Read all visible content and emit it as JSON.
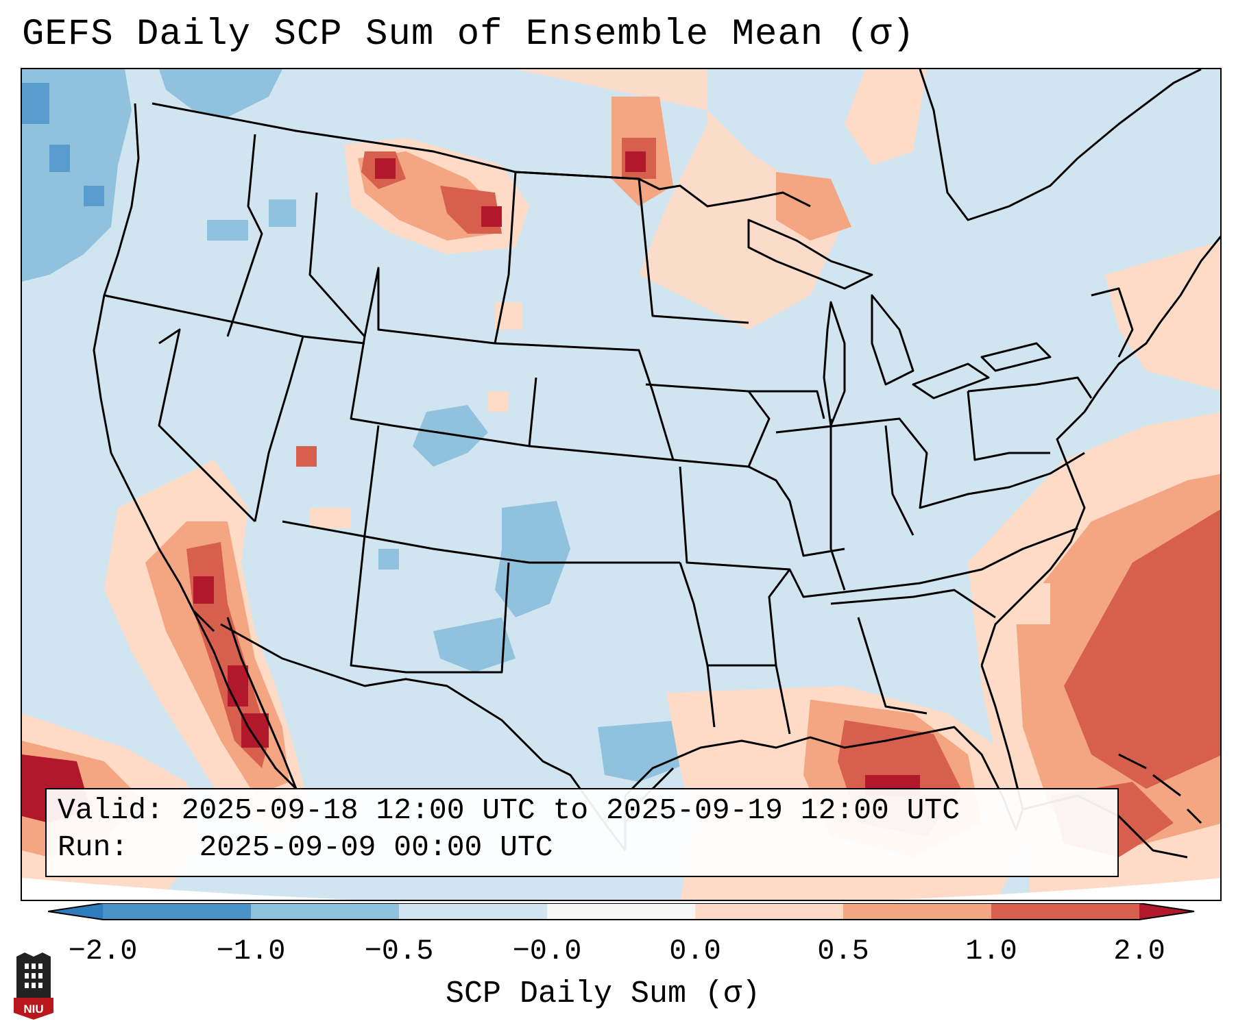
{
  "title": "GEFS Daily SCP Sum of Ensemble Mean (σ)",
  "info": {
    "valid_label": "Valid:",
    "valid_value": "2025-09-18 12:00 UTC to 2025-09-19 12:00 UTC",
    "run_label": "Run:",
    "run_value": "2025-09-09 00:00 UTC"
  },
  "colorbar": {
    "label": "SCP Daily Sum (σ)",
    "ticks": [
      "−2.0",
      "−1.0",
      "−0.5",
      "−0.0",
      "0.0",
      "0.5",
      "1.0",
      "2.0"
    ],
    "bins": [
      {
        "range": "< -2.0",
        "color": "#2f7cbd"
      },
      {
        "range": "-2.0 to -1.0",
        "color": "#4a93c8"
      },
      {
        "range": "-1.0 to -0.5",
        "color": "#90c2de"
      },
      {
        "range": "-0.5 to -0.0",
        "color": "#d1e5f0"
      },
      {
        "range": "-0.0 to 0.0",
        "color": "#f7f7f7"
      },
      {
        "range": "0.0 to 0.5",
        "color": "#fddbc7"
      },
      {
        "range": "0.5 to 1.0",
        "color": "#f4a582"
      },
      {
        "range": "1.0 to 2.0",
        "color": "#d6604d"
      },
      {
        "range": "> 2.0",
        "color": "#b2182b"
      }
    ]
  },
  "logo": {
    "text": "NIU"
  },
  "colors": {
    "neutral_blue": "#d1e5f0",
    "light_blue": "#90c2de",
    "light_red": "#fddbc7",
    "mid_red": "#f4a582",
    "red": "#d6604d",
    "dark_red": "#b2182b",
    "border": "#000000"
  },
  "anomaly_regions": [
    {
      "name": "Northern Montana / Alberta",
      "category": "1.0 to 2.0"
    },
    {
      "name": "Northern Minnesota / Manitoba",
      "category": "1.0 to 2.0"
    },
    {
      "name": "Gulf of Mexico",
      "category": "1.0 to 2.0"
    },
    {
      "name": "Western Atlantic",
      "category": "1.0 to 2.0"
    },
    {
      "name": "Baja California / Gulf of California",
      "category": "> 2.0"
    },
    {
      "name": "Pacific Northwest offshore",
      "category": "-1.0 to -0.5"
    },
    {
      "name": "Eastern New Mexico / West Texas",
      "category": "-1.0 to -0.5"
    }
  ]
}
